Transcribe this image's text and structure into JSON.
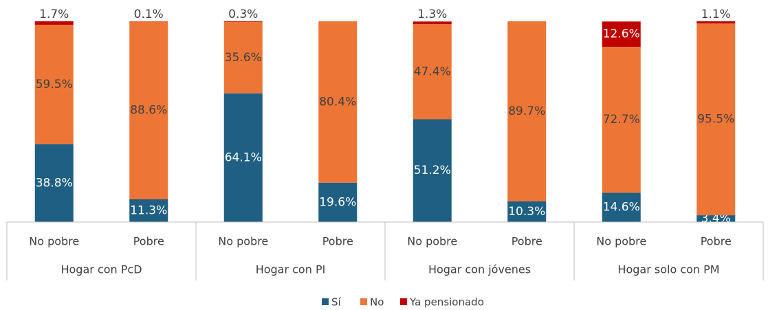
{
  "chart_data": {
    "type": "stacked_bar",
    "categories": [
      "No pobre",
      "Pobre",
      "No pobre",
      "Pobre",
      "No pobre",
      "Pobre",
      "No pobre",
      "Pobre"
    ],
    "groups": [
      "Hogar con PcD",
      "Hogar con PI",
      "Hogar con jóvenes",
      "Hogar solo con PM"
    ],
    "ylim": [
      0,
      100
    ],
    "legend": "bottom",
    "series": [
      {
        "name": "Sí",
        "color": "#1f5f84",
        "values": [
          38.8,
          11.3,
          64.1,
          19.6,
          51.2,
          10.3,
          14.6,
          3.4
        ],
        "value_labels": [
          "38.8%",
          "11.3%",
          "64.1%",
          "19.6%",
          "51.2%",
          "10.3%",
          "14.6%",
          "3.4%"
        ]
      },
      {
        "name": "No",
        "color": "#ed7636",
        "values": [
          59.5,
          88.6,
          35.6,
          80.4,
          47.4,
          89.7,
          72.7,
          95.5
        ],
        "value_labels": [
          "59.5%",
          "88.6%",
          "35.6%",
          "80.4%",
          "47.4%",
          "89.7%",
          "72.7%",
          "95.5%"
        ]
      },
      {
        "name": "Ya pensionado",
        "color": "#c00000",
        "values": [
          1.7,
          0.1,
          0.3,
          0,
          1.3,
          0,
          12.6,
          1.1
        ],
        "value_labels": [
          "1.7%",
          "0.1%",
          "0.3%",
          null,
          "1.3%",
          null,
          "12.6%",
          "1.1%"
        ]
      }
    ]
  }
}
